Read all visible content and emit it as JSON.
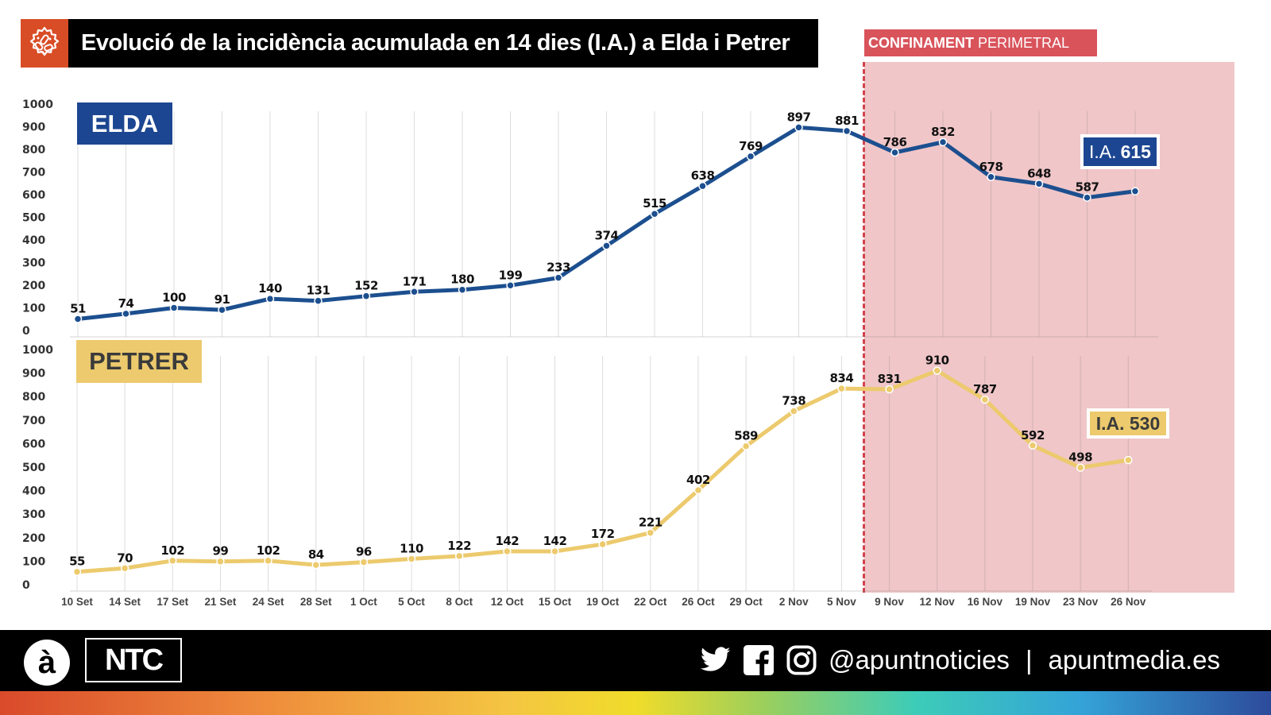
{
  "header": {
    "title": "Evolució de la incidència acumulada en 14 dies (I.A.) a Elda i Petrer",
    "icon": "virus-icon"
  },
  "lockdown": {
    "label_bold": "CONFINAMENT",
    "label_light": "PERIMETRAL",
    "start_after_category": "5 Nov",
    "color": "#d9535b",
    "region_color": "#f0c6c8"
  },
  "badges": {
    "elda": {
      "prefix": "I.A.",
      "value": "615"
    },
    "petrer": {
      "text": "I.A. 530"
    }
  },
  "footer": {
    "logo_a": "à",
    "logo_ntc": "NTC",
    "handle": "@apuntnoticies",
    "separator": "|",
    "website": "apuntmedia.es",
    "icons": [
      "twitter-icon",
      "facebook-icon",
      "instagram-icon"
    ]
  },
  "chart_data": [
    {
      "type": "line",
      "title": "ELDA",
      "color": "#1c4f8f",
      "categories": [
        "10 Set",
        "14 Set",
        "17 Set",
        "21 Set",
        "24 Set",
        "28 Set",
        "1 Oct",
        "5 Oct",
        "8 Oct",
        "12 Oct",
        "15 Oct",
        "19 Oct",
        "22 Oct",
        "26 Oct",
        "29 Oct",
        "2 Nov",
        "5 Nov",
        "9 Nov",
        "12 Nov",
        "16 Nov",
        "19 Nov",
        "23 Nov",
        "26 Nov"
      ],
      "values": [
        51,
        74,
        100,
        91,
        140,
        131,
        152,
        171,
        180,
        199,
        233,
        374,
        515,
        638,
        769,
        897,
        881,
        786,
        832,
        678,
        648,
        587,
        615
      ],
      "data_labels": [
        "51",
        "74",
        "100",
        "91",
        "140",
        "131",
        "152",
        "171",
        "180",
        "199",
        "233",
        "374",
        "515",
        "638",
        "769",
        "897",
        "881",
        "786",
        "832",
        "678",
        "648",
        "587",
        ""
      ],
      "yticks": [
        0,
        100,
        200,
        300,
        400,
        500,
        600,
        700,
        800,
        900,
        1000
      ],
      "ylim": [
        0,
        1000
      ],
      "xlabel": "",
      "ylabel": "",
      "grid": "vertical"
    },
    {
      "type": "line",
      "title": "PETRER",
      "color": "#ecca6d",
      "categories": [
        "10 Set",
        "14 Set",
        "17 Set",
        "21 Set",
        "24 Set",
        "28 Set",
        "1 Oct",
        "5 Oct",
        "8 Oct",
        "12 Oct",
        "15 Oct",
        "19 Oct",
        "22 Oct",
        "26 Oct",
        "29 Oct",
        "2 Nov",
        "5 Nov",
        "9 Nov",
        "12 Nov",
        "16 Nov",
        "19 Nov",
        "23 Nov",
        "26 Nov"
      ],
      "values": [
        55,
        70,
        102,
        99,
        102,
        84,
        96,
        110,
        122,
        142,
        142,
        172,
        221,
        402,
        589,
        738,
        834,
        831,
        910,
        787,
        592,
        498,
        530
      ],
      "data_labels": [
        "55",
        "70",
        "102",
        "99",
        "102",
        "84",
        "96",
        "110",
        "122",
        "142",
        "142",
        "172",
        "221",
        "402",
        "589",
        "738",
        "834",
        "831",
        "910",
        "787",
        "592",
        "498",
        ""
      ],
      "yticks": [
        0,
        100,
        200,
        300,
        400,
        500,
        600,
        700,
        800,
        900,
        1000
      ],
      "ylim": [
        0,
        1000
      ],
      "xlabel": "",
      "ylabel": "",
      "grid": "vertical"
    }
  ]
}
